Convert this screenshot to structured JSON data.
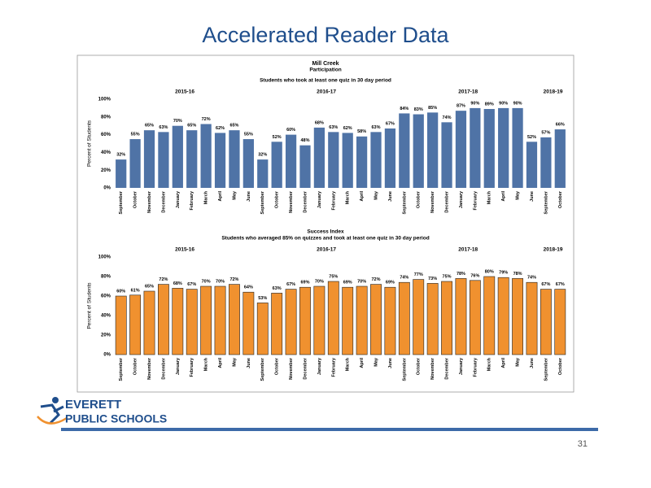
{
  "slide": {
    "title": "Accelerated Reader Data",
    "heading": "Mill Creek",
    "logo_top": "EVERETT",
    "logo_bottom": "PUBLIC SCHOOLS",
    "page_number": "31"
  },
  "chart_data": [
    {
      "type": "bar",
      "title": "Participation",
      "subtitle": "Students who took at least one quiz in 30 day period",
      "ylabel": "Percent of Students",
      "color": "#4f73a6",
      "year_labels": [
        "2015-16",
        "2016-17",
        "2017-18",
        "2018-19"
      ],
      "categories": [
        "September",
        "October",
        "November",
        "December",
        "January",
        "February",
        "March",
        "April",
        "May",
        "June",
        "September",
        "October",
        "November",
        "December",
        "January",
        "February",
        "March",
        "April",
        "May",
        "June",
        "September",
        "October",
        "November",
        "December",
        "January",
        "February",
        "March",
        "April",
        "May",
        "June",
        "September",
        "October"
      ],
      "values": [
        32,
        55,
        65,
        63,
        70,
        65,
        72,
        62,
        65,
        55,
        32,
        52,
        60,
        48,
        68,
        63,
        62,
        58,
        63,
        67,
        84,
        83,
        85,
        74,
        87,
        90,
        89,
        90,
        90,
        52,
        57,
        66
      ],
      "value_labels": [
        "32%",
        "55%",
        "65%",
        "63%",
        "70%",
        "65%",
        "72%",
        "62%",
        "65%",
        "55%",
        "32%",
        "52%",
        "60%",
        "48%",
        "68%",
        "63%",
        "62%",
        "58%",
        "63%",
        "67%",
        "84%",
        "83%",
        "85%",
        "74%",
        "87%",
        "90%",
        "89%",
        "90%",
        "90%",
        "52%",
        "57%",
        "66%"
      ],
      "ylim": [
        0,
        100
      ],
      "yticks": [
        {
          "value": 0,
          "label": "0%"
        },
        {
          "value": 20,
          "label": "20%"
        },
        {
          "value": 40,
          "label": "40%"
        },
        {
          "value": 60,
          "label": "60%"
        },
        {
          "value": 80,
          "label": "80%"
        },
        {
          "value": 100,
          "label": "100%"
        }
      ]
    },
    {
      "type": "bar",
      "title": "Success Index",
      "subtitle": "Students who averaged 85% on quizzes and took at least one quiz in 30 day period",
      "ylabel": "Percent of Students",
      "color": "#f0912f",
      "year_labels": [
        "2015-16",
        "2016-17",
        "2017-18",
        "2018-19"
      ],
      "categories": [
        "September",
        "October",
        "November",
        "December",
        "January",
        "February",
        "March",
        "April",
        "May",
        "June",
        "September",
        "October",
        "November",
        "December",
        "January",
        "February",
        "March",
        "April",
        "May",
        "June",
        "September",
        "October",
        "November",
        "December",
        "January",
        "February",
        "March",
        "April",
        "May",
        "June",
        "September",
        "October"
      ],
      "values": [
        60,
        61,
        65,
        72,
        68,
        67,
        70,
        70,
        72,
        64,
        53,
        63,
        67,
        69,
        70,
        75,
        69,
        70,
        72,
        69,
        74,
        77,
        73,
        75,
        78,
        76,
        80,
        79,
        78,
        74,
        67,
        67
      ],
      "value_labels": [
        "60%",
        "61%",
        "65%",
        "72%",
        "68%",
        "67%",
        "70%",
        "70%",
        "72%",
        "64%",
        "53%",
        "63%",
        "67%",
        "69%",
        "70%",
        "75%",
        "69%",
        "70%",
        "72%",
        "69%",
        "74%",
        "77%",
        "73%",
        "75%",
        "78%",
        "76%",
        "80%",
        "79%",
        "78%",
        "74%",
        "67%",
        "67%"
      ],
      "ylim": [
        0,
        100
      ],
      "yticks": [
        {
          "value": 0,
          "label": "0%"
        },
        {
          "value": 20,
          "label": "20%"
        },
        {
          "value": 40,
          "label": "40%"
        },
        {
          "value": 60,
          "label": "60%"
        },
        {
          "value": 80,
          "label": "80%"
        },
        {
          "value": 100,
          "label": "100%"
        }
      ]
    }
  ]
}
